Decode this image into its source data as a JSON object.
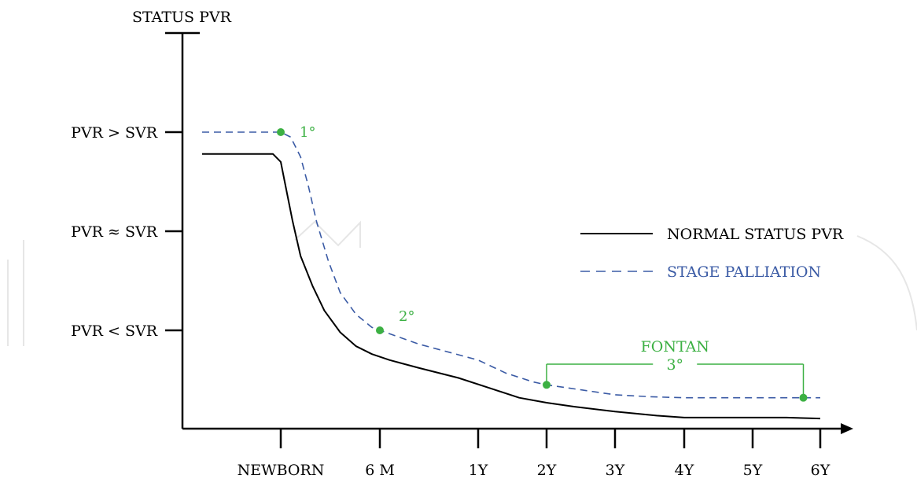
{
  "chart_data": {
    "type": "line",
    "ylabel": "STATUS PVR",
    "ytick_labels": [
      "PVR > SVR",
      "PVR ≈ SVR",
      "PVR < SVR"
    ],
    "ytick_values": [
      3,
      2,
      1
    ],
    "ylim": [
      0,
      4
    ],
    "xtick_labels": [
      "NEWBORN",
      "6 M",
      "1Y",
      "2Y",
      "3Y",
      "4Y",
      "5Y",
      "6Y"
    ],
    "xtick_values": [
      0,
      0.5,
      1,
      2,
      3,
      4,
      5,
      6
    ],
    "xlim": [
      -0.5,
      6.2
    ],
    "grid": false,
    "legend_position": "right",
    "series": [
      {
        "name": "NORMAL STATUS PVR",
        "style": "solid",
        "color": "#000000",
        "x": [
          -0.4,
          -0.04,
          0.0,
          0.02,
          0.06,
          0.1,
          0.16,
          0.22,
          0.3,
          0.38,
          0.46,
          0.55,
          0.7,
          0.9,
          1.2,
          1.6,
          2.0,
          2.4,
          3.0,
          3.6,
          4.0,
          4.5,
          5.0,
          5.5,
          6.0
        ],
        "y": [
          2.78,
          2.78,
          2.7,
          2.5,
          2.1,
          1.75,
          1.45,
          1.2,
          0.98,
          0.84,
          0.76,
          0.7,
          0.62,
          0.52,
          0.41,
          0.32,
          0.27,
          0.23,
          0.18,
          0.14,
          0.12,
          0.12,
          0.12,
          0.12,
          0.11
        ]
      },
      {
        "name": "STAGE PALLIATION",
        "style": "dashed",
        "color": "#3b5ba5",
        "x": [
          -0.4,
          -0.1,
          0.0,
          0.05,
          0.1,
          0.14,
          0.18,
          0.24,
          0.3,
          0.38,
          0.46,
          0.5,
          0.7,
          1.0,
          1.4,
          1.8,
          2.0,
          2.5,
          3.0,
          3.5,
          4.0,
          4.5,
          5.0,
          5.5,
          5.75,
          6.0
        ],
        "y": [
          3.0,
          3.0,
          3.0,
          2.95,
          2.75,
          2.45,
          2.1,
          1.7,
          1.38,
          1.16,
          1.03,
          1.0,
          0.86,
          0.7,
          0.57,
          0.48,
          0.45,
          0.4,
          0.35,
          0.33,
          0.32,
          0.32,
          0.32,
          0.32,
          0.32,
          0.32
        ]
      }
    ],
    "annotations": [
      {
        "label": "1°",
        "x": 0.0,
        "y": 3.0
      },
      {
        "label": "2°",
        "x": 0.5,
        "y": 1.0
      },
      {
        "label": "3°",
        "x": 5.75,
        "y": 0.32
      }
    ],
    "extra_points": [
      {
        "x": 2.0,
        "y": 0.45
      }
    ],
    "bracket": {
      "label": "FONTAN",
      "sublabel": "3°",
      "x_from": 2.0,
      "x_to": 5.75
    },
    "colors": {
      "axis": "#000000",
      "highlight": "#3cb043",
      "dashed": "#3b5ba5"
    }
  }
}
